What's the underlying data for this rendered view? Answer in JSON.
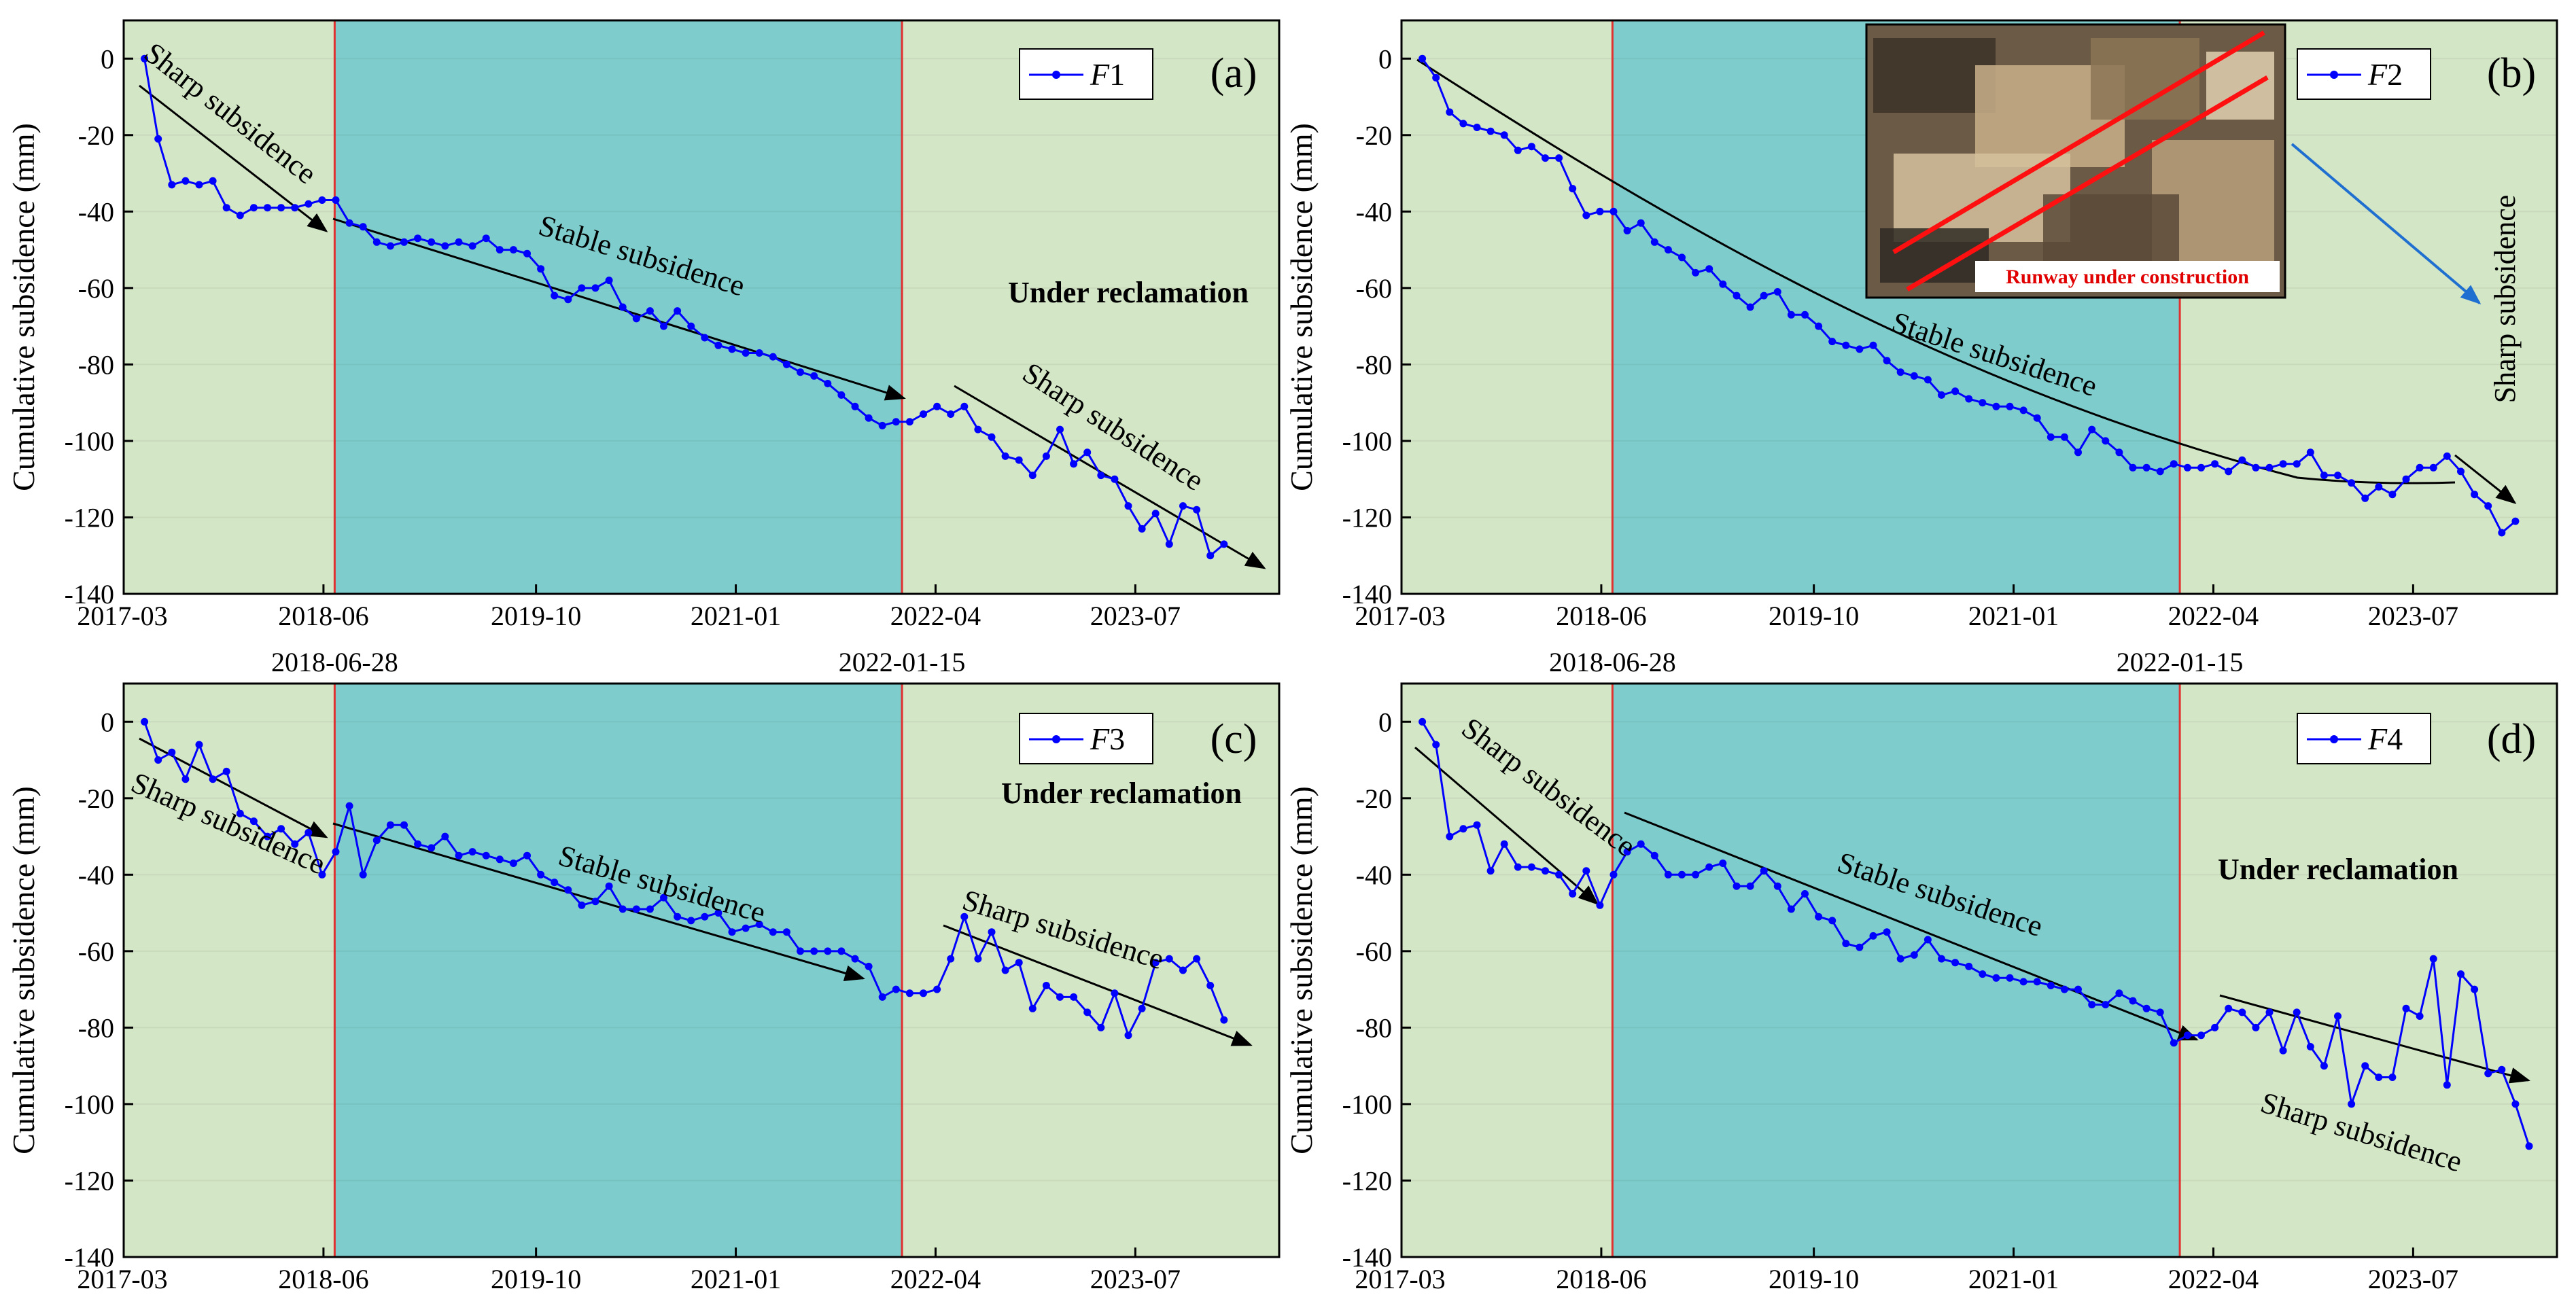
{
  "colors": {
    "phase_green": "#d3e6c6",
    "phase_teal": "#7ecdcc",
    "series": "#0000ff",
    "boundary": "#e03030",
    "trend": "#000000",
    "inset_arrow": "#1f6fd0",
    "inset_line": "#ff1010"
  },
  "boundary_dates": [
    "2018-06-28",
    "2022-01-15"
  ],
  "inset": {
    "caption": "Runway under construction",
    "image_name": "satellite-image-runway"
  },
  "chart_data": [
    {
      "id": "a",
      "type": "line",
      "panel_letter": "(a)",
      "legend": {
        "prefix": "F",
        "num": "1"
      },
      "xlabel": "",
      "ylabel": "Cumulative subsidence (mm)",
      "xlim": [
        2017.17,
        2024.4
      ],
      "ylim": [
        -140,
        10
      ],
      "xticks": [
        "2017-03",
        "2018-06",
        "2019-10",
        "2021-01",
        "2022-04",
        "2023-07"
      ],
      "yticks": [
        0,
        -20,
        -40,
        -60,
        -80,
        -100,
        -120,
        -140
      ],
      "x_start": 2017.3,
      "x_step": 0.0855,
      "values": [
        0,
        -21,
        -33,
        -32,
        -33,
        -32,
        -39,
        -41,
        -39,
        -39,
        -39,
        -39,
        -38,
        -37,
        -37,
        -43,
        -44,
        -48,
        -49,
        -48,
        -47,
        -48,
        -49,
        -48,
        -49,
        -47,
        -50,
        -50,
        -51,
        -55,
        -62,
        -63,
        -60,
        -60,
        -58,
        -65,
        -68,
        -66,
        -70,
        -66,
        -70,
        -73,
        -75,
        -76,
        -77,
        -77,
        -78,
        -80,
        -82,
        -83,
        -85,
        -88,
        -91,
        -94,
        -96,
        -95,
        -95,
        -93,
        -91,
        -93,
        -91,
        -97,
        -99,
        -104,
        -105,
        -109,
        -104,
        -97,
        -106,
        -103,
        -109,
        -110,
        -117,
        -123,
        -119,
        -127,
        -117,
        -118,
        -130,
        -127
      ],
      "annotations": [
        {
          "text": "Sharp subsidence",
          "style": "normal"
        },
        {
          "text": "Stable subsidence",
          "style": "normal"
        },
        {
          "text": "Under reclamation",
          "style": "bold"
        },
        {
          "text": "Sharp subsidence",
          "style": "normal"
        }
      ]
    },
    {
      "id": "b",
      "type": "line",
      "panel_letter": "(b)",
      "legend": {
        "prefix": "F",
        "num": "2"
      },
      "xlabel": "",
      "ylabel": "Cumulative subsidence (mm)",
      "xlim": [
        2017.17,
        2024.4
      ],
      "ylim": [
        -140,
        10
      ],
      "xticks": [
        "2017-03",
        "2018-06",
        "2019-10",
        "2021-01",
        "2022-04",
        "2023-07"
      ],
      "yticks": [
        0,
        -20,
        -40,
        -60,
        -80,
        -100,
        -120,
        -140
      ],
      "x_start": 2017.3,
      "x_step": 0.0855,
      "values": [
        0,
        -5,
        -14,
        -17,
        -18,
        -19,
        -20,
        -24,
        -23,
        -26,
        -26,
        -34,
        -41,
        -40,
        -40,
        -45,
        -43,
        -48,
        -50,
        -52,
        -56,
        -55,
        -59,
        -62,
        -65,
        -62,
        -61,
        -67,
        -67,
        -70,
        -74,
        -75,
        -76,
        -75,
        -79,
        -82,
        -83,
        -84,
        -88,
        -87,
        -89,
        -90,
        -91,
        -91,
        -92,
        -94,
        -99,
        -99,
        -103,
        -97,
        -100,
        -103,
        -107,
        -107,
        -108,
        -106,
        -107,
        -107,
        -106,
        -108,
        -105,
        -107,
        -107,
        -106,
        -106,
        -103,
        -109,
        -109,
        -111,
        -115,
        -112,
        -114,
        -110,
        -107,
        -107,
        -104,
        -108,
        -114,
        -117,
        -124,
        -121
      ],
      "annotations": [
        {
          "text": "Stable subsidence",
          "style": "normal"
        },
        {
          "text": "Sharp subsidence",
          "style": "normal"
        }
      ]
    },
    {
      "id": "c",
      "type": "line",
      "panel_letter": "(c)",
      "legend": {
        "prefix": "F",
        "num": "3"
      },
      "xlabel": "",
      "ylabel": "Cumulative subsidence (mm)",
      "xlim": [
        2017.17,
        2024.4
      ],
      "ylim": [
        -140,
        10
      ],
      "xticks": [
        "2017-03",
        "2018-06",
        "2019-10",
        "2021-01",
        "2022-04",
        "2023-07"
      ],
      "yticks": [
        0,
        -20,
        -40,
        -60,
        -80,
        -100,
        -120,
        -140
      ],
      "x_start": 2017.3,
      "x_step": 0.0855,
      "values": [
        0,
        -10,
        -8,
        -15,
        -6,
        -15,
        -13,
        -24,
        -26,
        -30,
        -28,
        -32,
        -29,
        -40,
        -34,
        -22,
        -40,
        -31,
        -27,
        -27,
        -32,
        -33,
        -30,
        -35,
        -34,
        -35,
        -36,
        -37,
        -35,
        -40,
        -42,
        -44,
        -48,
        -47,
        -43,
        -49,
        -49,
        -49,
        -46,
        -51,
        -52,
        -51,
        -50,
        -55,
        -54,
        -53,
        -55,
        -55,
        -60,
        -60,
        -60,
        -60,
        -62,
        -64,
        -72,
        -70,
        -71,
        -71,
        -70,
        -62,
        -51,
        -62,
        -55,
        -65,
        -63,
        -75,
        -69,
        -72,
        -72,
        -76,
        -80,
        -71,
        -82,
        -75,
        -63,
        -62,
        -65,
        -62,
        -69,
        -78
      ],
      "annotations": [
        {
          "text": "Sharp subsidence",
          "style": "normal"
        },
        {
          "text": "Stable subsidence",
          "style": "normal"
        },
        {
          "text": "Under reclamation",
          "style": "bold"
        },
        {
          "text": "Sharp subsidence",
          "style": "normal"
        }
      ]
    },
    {
      "id": "d",
      "type": "line",
      "panel_letter": "(d)",
      "legend": {
        "prefix": "F",
        "num": "4"
      },
      "xlabel": "",
      "ylabel": "Cumulative subsidence (mm)",
      "xlim": [
        2017.17,
        2024.4
      ],
      "ylim": [
        -140,
        10
      ],
      "xticks": [
        "2017-03",
        "2018-06",
        "2019-10",
        "2021-01",
        "2022-04",
        "2023-07"
      ],
      "yticks": [
        0,
        -20,
        -40,
        -60,
        -80,
        -100,
        -120,
        -140
      ],
      "x_start": 2017.3,
      "x_step": 0.0855,
      "values": [
        0,
        -6,
        -30,
        -28,
        -27,
        -39,
        -32,
        -38,
        -38,
        -39,
        -40,
        -45,
        -39,
        -48,
        -40,
        -34,
        -32,
        -35,
        -40,
        -40,
        -40,
        -38,
        -37,
        -43,
        -43,
        -39,
        -43,
        -49,
        -45,
        -51,
        -52,
        -58,
        -59,
        -56,
        -55,
        -62,
        -61,
        -57,
        -62,
        -63,
        -64,
        -66,
        -67,
        -67,
        -68,
        -68,
        -69,
        -70,
        -70,
        -74,
        -74,
        -71,
        -73,
        -75,
        -76,
        -84,
        -82,
        -82,
        -80,
        -75,
        -76,
        -80,
        -76,
        -86,
        -76,
        -85,
        -90,
        -77,
        -100,
        -90,
        -93,
        -93,
        -75,
        -77,
        -62,
        -95,
        -66,
        -70,
        -92,
        -91,
        -100,
        -111
      ],
      "annotations": [
        {
          "text": "Sharp subsidence",
          "style": "normal"
        },
        {
          "text": "Stable subsidence",
          "style": "normal"
        },
        {
          "text": "Under reclamation",
          "style": "bold"
        },
        {
          "text": "Sharp subsidence",
          "style": "normal"
        }
      ]
    }
  ]
}
